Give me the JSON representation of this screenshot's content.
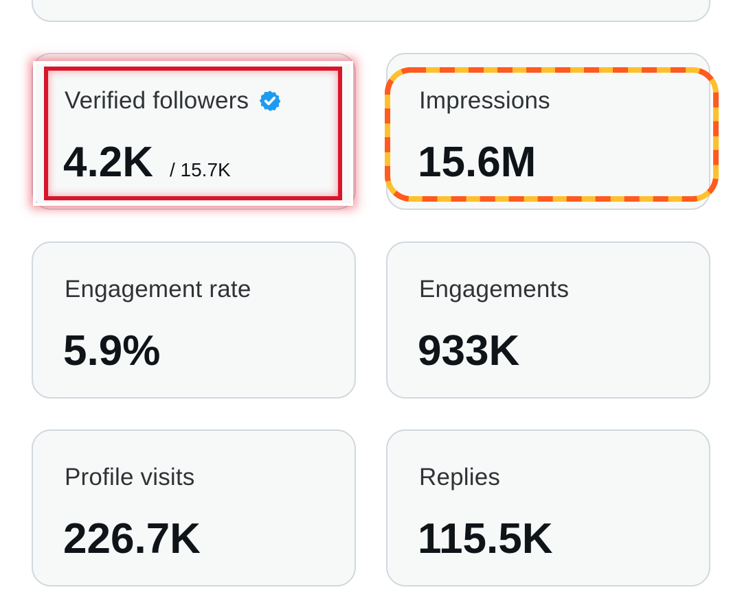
{
  "cards": [
    {
      "label": "Verified followers",
      "value": "4.2K",
      "sub": "/ 15.7K",
      "icon": "verified-badge-icon"
    },
    {
      "label": "Impressions",
      "value": "15.6M"
    },
    {
      "label": "Engagement rate",
      "value": "5.9%"
    },
    {
      "label": "Engagements",
      "value": "933K"
    },
    {
      "label": "Profile visits",
      "value": "226.7K"
    },
    {
      "label": "Replies",
      "value": "115.5K"
    }
  ],
  "colors": {
    "card_bg": "#f7f8f8",
    "card_border": "#cfd9de",
    "text_primary": "#0f1419",
    "text_secondary": "#2f3336",
    "verified_blue": "#1d9bf0",
    "highlight_red": "#d8152b",
    "highlight_orange": "#ff5a1f",
    "highlight_yellow": "#ffc02e"
  }
}
